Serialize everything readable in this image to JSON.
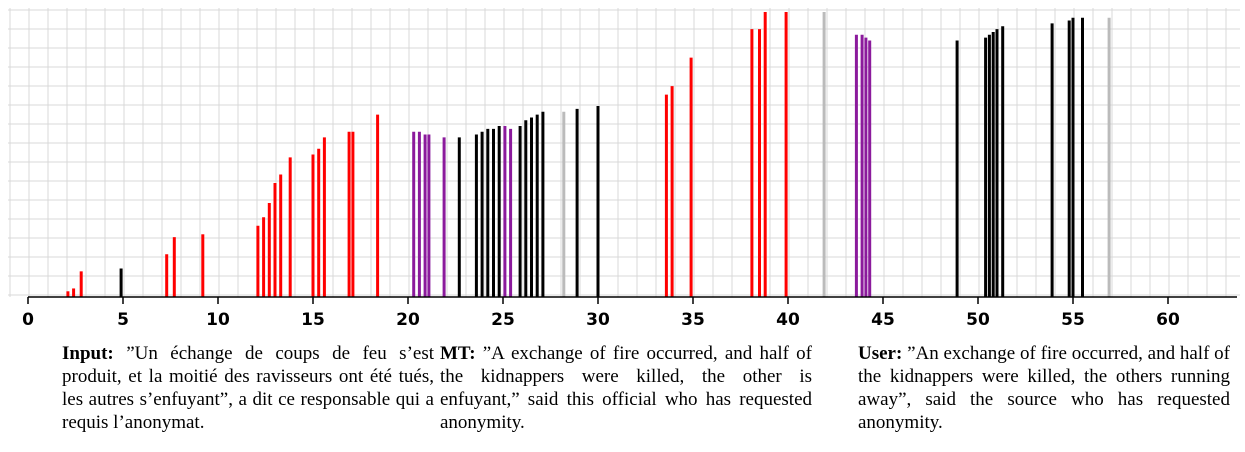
{
  "chart_data": {
    "type": "bar",
    "xlim": [
      0,
      63
    ],
    "ylim": [
      0,
      100
    ],
    "grid": true,
    "x_ticks": [
      0,
      5,
      10,
      15,
      20,
      25,
      30,
      35,
      40,
      45,
      50,
      55,
      60
    ],
    "x_tick_labels": [
      "0",
      "5",
      "10",
      "15",
      "20",
      "25",
      "30",
      "35",
      "40",
      "45",
      "50",
      "55",
      "60"
    ],
    "colors": {
      "red": "#ff0000",
      "black": "#000000",
      "purple": "#8b1a9c",
      "gray": "#bbbbbb",
      "grid": "#d9d9d9"
    },
    "points": [
      {
        "x": 2.1,
        "y": 2,
        "color": "red"
      },
      {
        "x": 2.4,
        "y": 3,
        "color": "red"
      },
      {
        "x": 2.8,
        "y": 9,
        "color": "red"
      },
      {
        "x": 4.9,
        "y": 10,
        "color": "black"
      },
      {
        "x": 7.3,
        "y": 15,
        "color": "red"
      },
      {
        "x": 7.7,
        "y": 21,
        "color": "red"
      },
      {
        "x": 9.2,
        "y": 22,
        "color": "red"
      },
      {
        "x": 12.1,
        "y": 25,
        "color": "red"
      },
      {
        "x": 12.4,
        "y": 28,
        "color": "red"
      },
      {
        "x": 12.7,
        "y": 33,
        "color": "red"
      },
      {
        "x": 13.0,
        "y": 40,
        "color": "red"
      },
      {
        "x": 13.3,
        "y": 43,
        "color": "red"
      },
      {
        "x": 13.8,
        "y": 49,
        "color": "red"
      },
      {
        "x": 15.0,
        "y": 50,
        "color": "red"
      },
      {
        "x": 15.3,
        "y": 52,
        "color": "red"
      },
      {
        "x": 15.6,
        "y": 56,
        "color": "red"
      },
      {
        "x": 16.9,
        "y": 58,
        "color": "red"
      },
      {
        "x": 17.1,
        "y": 58,
        "color": "red"
      },
      {
        "x": 18.4,
        "y": 64,
        "color": "red"
      },
      {
        "x": 20.3,
        "y": 58,
        "color": "purple"
      },
      {
        "x": 20.6,
        "y": 58,
        "color": "purple"
      },
      {
        "x": 20.9,
        "y": 57,
        "color": "purple"
      },
      {
        "x": 21.1,
        "y": 57,
        "color": "purple"
      },
      {
        "x": 21.9,
        "y": 56,
        "color": "purple"
      },
      {
        "x": 22.7,
        "y": 56,
        "color": "black"
      },
      {
        "x": 23.6,
        "y": 57,
        "color": "black"
      },
      {
        "x": 23.9,
        "y": 58,
        "color": "black"
      },
      {
        "x": 24.2,
        "y": 59,
        "color": "black"
      },
      {
        "x": 24.5,
        "y": 59,
        "color": "black"
      },
      {
        "x": 24.8,
        "y": 60,
        "color": "black"
      },
      {
        "x": 25.1,
        "y": 60,
        "color": "purple"
      },
      {
        "x": 25.4,
        "y": 59,
        "color": "purple"
      },
      {
        "x": 25.9,
        "y": 60,
        "color": "black"
      },
      {
        "x": 26.2,
        "y": 62,
        "color": "black"
      },
      {
        "x": 26.5,
        "y": 63,
        "color": "black"
      },
      {
        "x": 26.8,
        "y": 64,
        "color": "black"
      },
      {
        "x": 27.1,
        "y": 65,
        "color": "black"
      },
      {
        "x": 28.2,
        "y": 65,
        "color": "gray"
      },
      {
        "x": 28.9,
        "y": 66,
        "color": "black"
      },
      {
        "x": 30.0,
        "y": 67,
        "color": "black"
      },
      {
        "x": 33.6,
        "y": 71,
        "color": "red"
      },
      {
        "x": 33.9,
        "y": 74,
        "color": "red"
      },
      {
        "x": 34.9,
        "y": 84,
        "color": "red"
      },
      {
        "x": 38.1,
        "y": 94,
        "color": "red"
      },
      {
        "x": 38.5,
        "y": 94,
        "color": "red"
      },
      {
        "x": 38.8,
        "y": 100,
        "color": "red"
      },
      {
        "x": 39.9,
        "y": 100,
        "color": "red"
      },
      {
        "x": 41.9,
        "y": 100,
        "color": "gray"
      },
      {
        "x": 43.6,
        "y": 92,
        "color": "purple"
      },
      {
        "x": 43.9,
        "y": 92,
        "color": "purple"
      },
      {
        "x": 44.1,
        "y": 91,
        "color": "purple"
      },
      {
        "x": 44.3,
        "y": 90,
        "color": "purple"
      },
      {
        "x": 48.9,
        "y": 90,
        "color": "black"
      },
      {
        "x": 50.4,
        "y": 91,
        "color": "black"
      },
      {
        "x": 50.6,
        "y": 92,
        "color": "black"
      },
      {
        "x": 50.8,
        "y": 93,
        "color": "black"
      },
      {
        "x": 51.0,
        "y": 94,
        "color": "black"
      },
      {
        "x": 51.3,
        "y": 95,
        "color": "black"
      },
      {
        "x": 53.9,
        "y": 96,
        "color": "black"
      },
      {
        "x": 54.8,
        "y": 97,
        "color": "black"
      },
      {
        "x": 55.0,
        "y": 98,
        "color": "black"
      },
      {
        "x": 55.5,
        "y": 98,
        "color": "black"
      },
      {
        "x": 56.9,
        "y": 98,
        "color": "gray"
      }
    ]
  },
  "captions": {
    "input_label": "Input:",
    "input_text": "”Un échange de coups de feu s’est produit, et la moitié des ravisseurs ont été tués, les autres s’enfuyant”, a dit ce responsable qui a requis l’anonymat.",
    "mt_label": "MT:",
    "mt_text": "”A exchange of fire occurred, and half of the kidnappers were killed, the other is enfuyant,” said this official who has requested anonymity.",
    "user_label": "User:",
    "user_text": "”An exchange of fire occurred, and half of the kidnappers were killed, the others running away”, said the source who has requested anonymity."
  }
}
